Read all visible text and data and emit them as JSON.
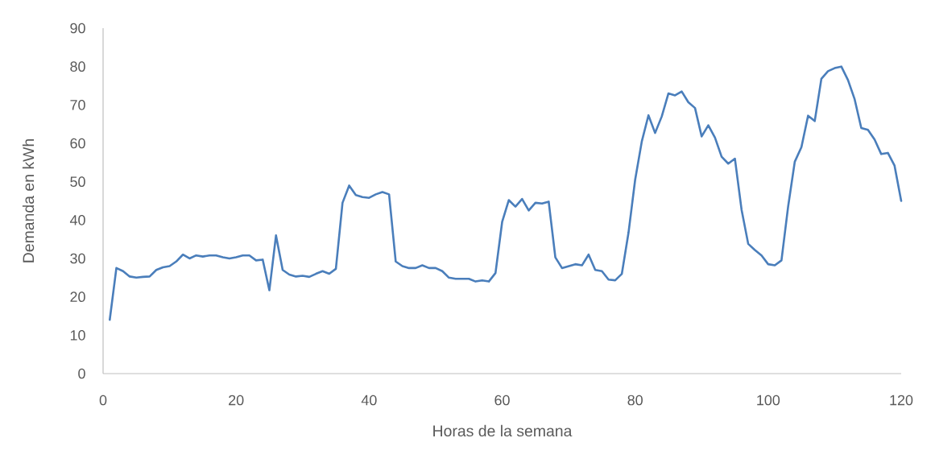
{
  "chart_data": {
    "type": "line",
    "xlabel": "Horas de la semana",
    "ylabel": "Demanda en kWh",
    "x": [
      1,
      2,
      3,
      4,
      5,
      6,
      7,
      8,
      9,
      10,
      11,
      12,
      13,
      14,
      15,
      16,
      17,
      18,
      19,
      20,
      21,
      22,
      23,
      24,
      25,
      26,
      27,
      28,
      29,
      30,
      31,
      32,
      33,
      34,
      35,
      36,
      37,
      38,
      39,
      40,
      41,
      42,
      43,
      44,
      45,
      46,
      47,
      48,
      49,
      50,
      51,
      52,
      53,
      54,
      55,
      56,
      57,
      58,
      59,
      60,
      61,
      62,
      63,
      64,
      65,
      66,
      67,
      68,
      69,
      70,
      71,
      72,
      73,
      74,
      75,
      76,
      77,
      78,
      79,
      80,
      81,
      82,
      83,
      84,
      85,
      86,
      87,
      88,
      89,
      90,
      91,
      92,
      93,
      94,
      95,
      96,
      97,
      98,
      99,
      100,
      101,
      102,
      103,
      104,
      105,
      106,
      107,
      108,
      109,
      110,
      111,
      112,
      113,
      114,
      115,
      116,
      117,
      118,
      119,
      120
    ],
    "series": [
      {
        "color": "#4a7ebb",
        "values": [
          14,
          27.5,
          26.7,
          25.3,
          25,
          25.2,
          25.3,
          27,
          27.7,
          28,
          29.2,
          31,
          30,
          30.8,
          30.5,
          30.8,
          30.8,
          30.3,
          30,
          30.3,
          30.8,
          30.8,
          29.5,
          29.7,
          21.7,
          36,
          27,
          25.8,
          25.3,
          25.5,
          25.2,
          26,
          26.7,
          26,
          27.3,
          44.5,
          49,
          46.5,
          46,
          45.8,
          46.7,
          47.3,
          46.7,
          29.2,
          28,
          27.5,
          27.5,
          28.2,
          27.5,
          27.5,
          26.7,
          25,
          24.7,
          24.7,
          24.7,
          24,
          24.3,
          24,
          26.2,
          39.5,
          45.2,
          43.5,
          45.5,
          42.5,
          44.5,
          44.3,
          44.8,
          30.3,
          27.5,
          28,
          28.5,
          28.2,
          31,
          27,
          26.7,
          24.5,
          24.3,
          26,
          36.7,
          50.5,
          60.5,
          67.3,
          62.7,
          67,
          73,
          72.5,
          73.5,
          70.7,
          69.2,
          61.8,
          64.7,
          61.5,
          56.5,
          54.7,
          56,
          42.7,
          33.8,
          32.2,
          30.8,
          28.5,
          28.2,
          29.5,
          43.5,
          55.2,
          59,
          67.2,
          65.8,
          76.8,
          78.8,
          79.6,
          80,
          76.5,
          71.5,
          64,
          63.5,
          61,
          57.2,
          57.5,
          54.2,
          45
        ]
      }
    ],
    "xlim": [
      0,
      120
    ],
    "ylim": [
      0,
      90
    ],
    "xticks": [
      0,
      20,
      40,
      60,
      80,
      100,
      120
    ],
    "yticks": [
      0,
      10,
      20,
      30,
      40,
      50,
      60,
      70,
      80,
      90
    ],
    "marker": "none",
    "line_style": "solid"
  }
}
